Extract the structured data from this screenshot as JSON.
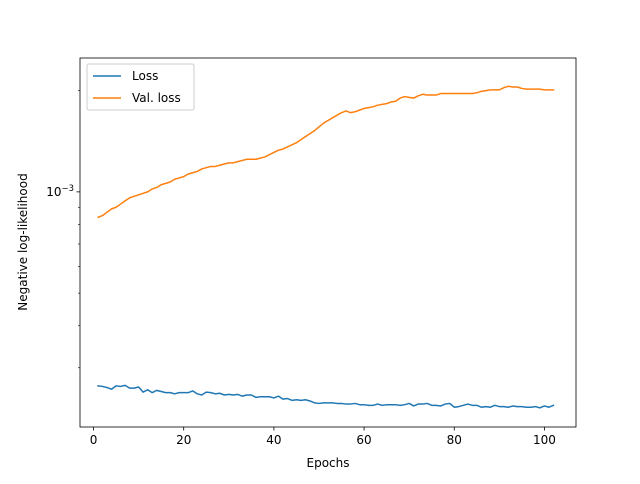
{
  "chart_data": {
    "type": "line",
    "xlabel": "Epochs",
    "ylabel": "Negative log-likelihood",
    "yscale": "log",
    "xlim": [
      -3,
      107
    ],
    "ylim": [
      0.0002,
      0.0025
    ],
    "x_ticks": [
      0,
      20,
      40,
      60,
      80,
      100
    ],
    "x_tick_labels": [
      "0",
      "20",
      "40",
      "60",
      "80",
      "100"
    ],
    "y_major_ticks": [
      0.001
    ],
    "y_major_tick_label": "10",
    "y_major_tick_exponent": "−3",
    "y_minor_ticks": [
      0.0003,
      0.0004,
      0.0005,
      0.0006,
      0.0007,
      0.0008,
      0.0009,
      0.002
    ],
    "grid": false,
    "legend_position": "top-left",
    "series": [
      {
        "name": "Loss",
        "color": "#1f77b4",
        "x": [
          1,
          2,
          3,
          4,
          5,
          6,
          7,
          8,
          9,
          10,
          11,
          12,
          13,
          14,
          15,
          16,
          17,
          18,
          19,
          20,
          21,
          22,
          23,
          24,
          25,
          26,
          27,
          28,
          29,
          30,
          31,
          32,
          33,
          34,
          35,
          36,
          37,
          38,
          39,
          40,
          41,
          42,
          43,
          44,
          45,
          46,
          47,
          48,
          49,
          50,
          51,
          52,
          53,
          54,
          55,
          56,
          57,
          58,
          59,
          60,
          61,
          62,
          63,
          64,
          65,
          66,
          67,
          68,
          69,
          70,
          71,
          72,
          73,
          74,
          75,
          76,
          77,
          78,
          79,
          80,
          81,
          82,
          83,
          84,
          85,
          86,
          87,
          88,
          89,
          90,
          91,
          92,
          93,
          94,
          95,
          96,
          97,
          98,
          99,
          100,
          101,
          102
        ],
        "y": [
          0.000265,
          0.000264,
          0.000262,
          0.000259,
          0.000265,
          0.000264,
          0.000266,
          0.000261,
          0.000261,
          0.000263,
          0.000254,
          0.000258,
          0.000253,
          0.000257,
          0.000255,
          0.000253,
          0.000253,
          0.000251,
          0.000253,
          0.000253,
          0.000253,
          0.000256,
          0.000251,
          0.000249,
          0.000254,
          0.000253,
          0.000251,
          0.000252,
          0.000249,
          0.00025,
          0.000249,
          0.00025,
          0.000247,
          0.000249,
          0.000249,
          0.000245,
          0.000246,
          0.000246,
          0.000246,
          0.000244,
          0.000247,
          0.000242,
          0.000243,
          0.00024,
          0.000241,
          0.00024,
          0.000241,
          0.000239,
          0.000236,
          0.000235,
          0.000236,
          0.000236,
          0.000236,
          0.000235,
          0.000235,
          0.000234,
          0.000234,
          0.000235,
          0.000233,
          0.000233,
          0.000232,
          0.000232,
          0.000234,
          0.000232,
          0.000233,
          0.000233,
          0.000233,
          0.000232,
          0.000233,
          0.000235,
          0.000231,
          0.000234,
          0.000234,
          0.000235,
          0.000232,
          0.000232,
          0.000231,
          0.000234,
          0.000235,
          0.000229,
          0.00023,
          0.000232,
          0.000234,
          0.000232,
          0.000232,
          0.000229,
          0.00023,
          0.000229,
          0.000232,
          0.00023,
          0.00023,
          0.000229,
          0.000231,
          0.00023,
          0.00023,
          0.000229,
          0.000229,
          0.00023,
          0.000228,
          0.000231,
          0.000229,
          0.000232
        ]
      },
      {
        "name": "Val. loss",
        "color": "#ff7f0e",
        "x": [
          1,
          2,
          3,
          4,
          5,
          6,
          7,
          8,
          9,
          10,
          11,
          12,
          13,
          14,
          15,
          16,
          17,
          18,
          19,
          20,
          21,
          22,
          23,
          24,
          25,
          26,
          27,
          28,
          29,
          30,
          31,
          32,
          33,
          34,
          35,
          36,
          37,
          38,
          39,
          40,
          41,
          42,
          43,
          44,
          45,
          46,
          47,
          48,
          49,
          50,
          51,
          52,
          53,
          54,
          55,
          56,
          57,
          58,
          59,
          60,
          61,
          62,
          63,
          64,
          65,
          66,
          67,
          68,
          69,
          70,
          71,
          72,
          73,
          74,
          75,
          76,
          77,
          78,
          79,
          80,
          81,
          82,
          83,
          84,
          85,
          86,
          87,
          88,
          89,
          90,
          91,
          92,
          93,
          94,
          95,
          96,
          97,
          98,
          99,
          100,
          101,
          102
        ],
        "y": [
          0.00084,
          0.00085,
          0.00087,
          0.00089,
          0.0009,
          0.00092,
          0.00094,
          0.00096,
          0.00097,
          0.00098,
          0.00099,
          0.001,
          0.00102,
          0.00103,
          0.00105,
          0.00106,
          0.00107,
          0.00109,
          0.0011,
          0.00111,
          0.00113,
          0.00114,
          0.00115,
          0.00117,
          0.00118,
          0.00119,
          0.00119,
          0.0012,
          0.00121,
          0.00122,
          0.00122,
          0.00123,
          0.00124,
          0.00125,
          0.00125,
          0.00125,
          0.00126,
          0.00127,
          0.00129,
          0.00131,
          0.00133,
          0.00134,
          0.00136,
          0.00138,
          0.0014,
          0.00143,
          0.00146,
          0.00149,
          0.00152,
          0.00156,
          0.0016,
          0.00163,
          0.00166,
          0.00169,
          0.00172,
          0.00174,
          0.00172,
          0.00173,
          0.00175,
          0.00177,
          0.00178,
          0.00179,
          0.00181,
          0.00182,
          0.00183,
          0.00185,
          0.00186,
          0.0019,
          0.00192,
          0.00191,
          0.0019,
          0.00193,
          0.00195,
          0.00194,
          0.00194,
          0.00194,
          0.00196,
          0.00196,
          0.00196,
          0.00196,
          0.00196,
          0.00196,
          0.00196,
          0.00196,
          0.00197,
          0.00199,
          0.002,
          0.00201,
          0.00201,
          0.00201,
          0.00204,
          0.00206,
          0.00205,
          0.00205,
          0.00203,
          0.00202,
          0.00202,
          0.00202,
          0.00202,
          0.00201,
          0.00201,
          0.00201
        ]
      }
    ]
  }
}
